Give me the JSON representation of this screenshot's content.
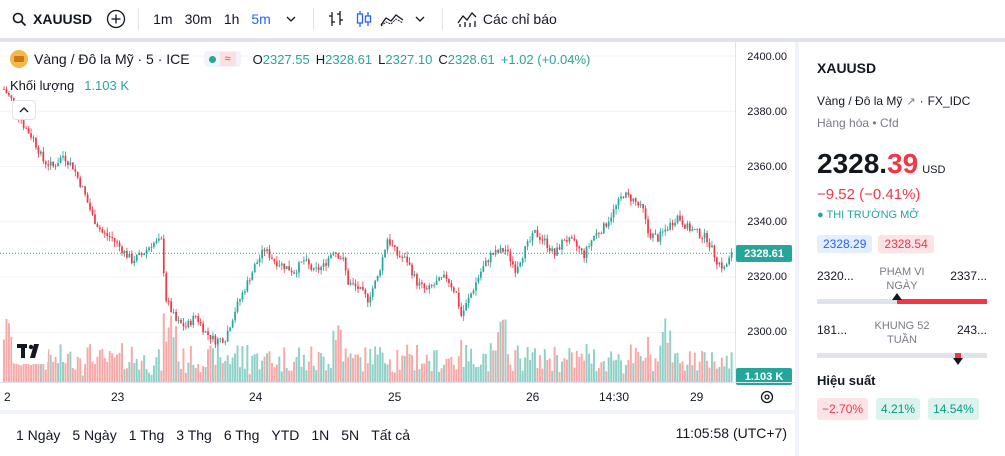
{
  "toolbar": {
    "symbol": "XAUUSD",
    "intervals": [
      "1m",
      "30m",
      "1h",
      "5m"
    ],
    "active_interval": "5m",
    "indicators_label": "Các chỉ báo"
  },
  "legend": {
    "title": "Vàng / Đô la Mỹ · 5 · ICE",
    "open_k": "O",
    "open_v": "2327.55",
    "high_k": "H",
    "high_v": "2328.61",
    "low_k": "L",
    "low_v": "2327.10",
    "close_k": "C",
    "close_v": "2328.61",
    "change": "+1.02 (+0.04%)",
    "volume_label": "Khối lượng",
    "volume_value": "1.103 K"
  },
  "price_axis": {
    "ticks": [
      "2400.00",
      "2380.00",
      "2360.00",
      "2340.00",
      "2320.00",
      "2300.00"
    ],
    "current_price": "2328.61",
    "current_volume": "1.103 K"
  },
  "time_axis": {
    "labels": [
      "2",
      "23",
      "24",
      "25",
      "26",
      "14:30",
      "29"
    ]
  },
  "bottombar": {
    "ranges": [
      "1 Ngày",
      "5 Ngày",
      "1 Thg",
      "3 Thg",
      "6 Thg",
      "YTD",
      "1N",
      "5N",
      "Tất cả"
    ],
    "clock": "11:05:58 (UTC+7)"
  },
  "panel": {
    "symbol": "XAUUSD",
    "description": "Vàng / Đô la Mỹ",
    "exchange": "FX_IDC",
    "category": "Hàng hóa",
    "type": "Cfd",
    "price_main": "2328.",
    "price_frac": "39",
    "currency": "USD",
    "change": "−9.52 (−0.41%)",
    "market_status": "THỊ TRƯỜNG MỞ",
    "bid": "2328.29",
    "ask": "2328.54",
    "day_range": {
      "low": "2320...",
      "high": "2337...",
      "label": "PHẠM VI NGÀY",
      "position": 0.47,
      "fill_from": 0.47
    },
    "week52_range": {
      "low": "181...",
      "high": "243...",
      "label": "KHUNG 52 TUẦN",
      "position": 0.83,
      "fill_from": 0.81,
      "fill_to": 0.85
    },
    "performance_title": "Hiệu suất",
    "performance": [
      "−2.70%",
      "4.21%",
      "14.54%"
    ]
  },
  "colors": {
    "up": "#26a69a",
    "down": "#f23645",
    "accent": "#2962ff"
  },
  "chart_data": {
    "type": "candlestick",
    "y_range": [
      2290,
      2400
    ],
    "keypoints": [
      [
        0,
        2388
      ],
      [
        4,
        2383
      ],
      [
        8,
        2375
      ],
      [
        12,
        2370
      ],
      [
        16,
        2362
      ],
      [
        20,
        2360
      ],
      [
        24,
        2364
      ],
      [
        28,
        2360
      ],
      [
        32,
        2352
      ],
      [
        36,
        2342
      ],
      [
        40,
        2336
      ],
      [
        44,
        2334
      ],
      [
        48,
        2330
      ],
      [
        52,
        2326
      ],
      [
        56,
        2328
      ],
      [
        60,
        2332
      ],
      [
        64,
        2333
      ],
      [
        66,
        2312
      ],
      [
        70,
        2304
      ],
      [
        74,
        2302
      ],
      [
        78,
        2306
      ],
      [
        82,
        2300
      ],
      [
        86,
        2297
      ],
      [
        90,
        2298
      ],
      [
        94,
        2308
      ],
      [
        98,
        2316
      ],
      [
        102,
        2324
      ],
      [
        106,
        2330
      ],
      [
        110,
        2326
      ],
      [
        114,
        2324
      ],
      [
        118,
        2322
      ],
      [
        122,
        2326
      ],
      [
        126,
        2322
      ],
      [
        130,
        2324
      ],
      [
        134,
        2330
      ],
      [
        138,
        2326
      ],
      [
        140,
        2318
      ],
      [
        144,
        2316
      ],
      [
        148,
        2312
      ],
      [
        152,
        2320
      ],
      [
        156,
        2334
      ],
      [
        160,
        2328
      ],
      [
        164,
        2326
      ],
      [
        168,
        2318
      ],
      [
        172,
        2315
      ],
      [
        176,
        2318
      ],
      [
        180,
        2320
      ],
      [
        184,
        2314
      ],
      [
        186,
        2306
      ],
      [
        190,
        2314
      ],
      [
        194,
        2322
      ],
      [
        198,
        2328
      ],
      [
        204,
        2330
      ],
      [
        208,
        2323
      ],
      [
        212,
        2330
      ],
      [
        216,
        2336
      ],
      [
        220,
        2333
      ],
      [
        224,
        2328
      ],
      [
        228,
        2334
      ],
      [
        232,
        2332
      ],
      [
        236,
        2328
      ],
      [
        240,
        2335
      ],
      [
        244,
        2338
      ],
      [
        248,
        2344
      ],
      [
        252,
        2350
      ],
      [
        256,
        2348
      ],
      [
        260,
        2344
      ],
      [
        262,
        2336
      ],
      [
        266,
        2334
      ],
      [
        270,
        2338
      ],
      [
        274,
        2342
      ],
      [
        278,
        2338
      ],
      [
        282,
        2336
      ],
      [
        286,
        2334
      ],
      [
        290,
        2326
      ],
      [
        293,
        2323
      ],
      [
        296,
        2328
      ]
    ],
    "last_close": 2328.61
  }
}
